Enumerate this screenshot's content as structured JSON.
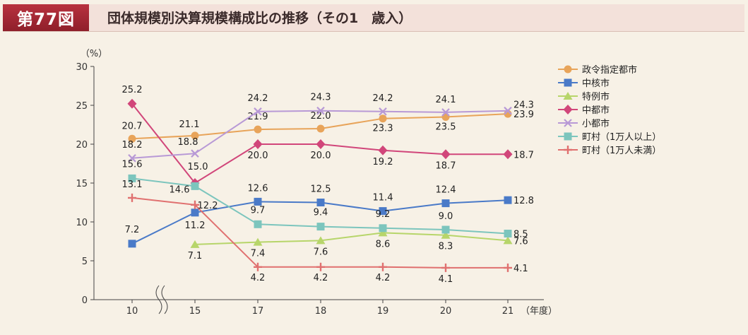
{
  "header": {
    "figure_no": "第77図",
    "title": "団体規模別決算規模構成比の推移（その1　歳入）"
  },
  "chart_data": {
    "type": "line",
    "title": "団体規模別決算規模構成比の推移（その1　歳入）",
    "ylabel": "（%）",
    "xlabel": "（年度）",
    "ylim": [
      0,
      30
    ],
    "yticks": [
      0,
      5,
      10,
      15,
      20,
      25,
      30
    ],
    "categories": [
      "10",
      "15",
      "17",
      "18",
      "19",
      "20",
      "21"
    ],
    "axis_break_between": [
      "10",
      "15"
    ],
    "legend_position": "top-right",
    "series": [
      {
        "name": "政令指定都市",
        "color": "#e8a45a",
        "marker": "circle",
        "values": [
          20.7,
          21.1,
          21.9,
          22.0,
          23.3,
          23.5,
          23.9
        ]
      },
      {
        "name": "中核市",
        "color": "#4a7ac8",
        "marker": "square",
        "values": [
          7.2,
          11.2,
          12.6,
          12.5,
          11.4,
          12.4,
          12.8
        ]
      },
      {
        "name": "特例市",
        "color": "#b7d56a",
        "marker": "triangle",
        "values": [
          null,
          7.1,
          7.4,
          7.6,
          8.6,
          8.3,
          7.6
        ]
      },
      {
        "name": "中都市",
        "color": "#d1467a",
        "marker": "diamond",
        "values": [
          25.2,
          15.0,
          20.0,
          20.0,
          19.2,
          18.7,
          18.7
        ]
      },
      {
        "name": "小都市",
        "color": "#b899d6",
        "marker": "x",
        "values": [
          18.2,
          18.8,
          24.2,
          24.3,
          24.2,
          24.1,
          24.3
        ]
      },
      {
        "name": "町村（1万人以上）",
        "color": "#7cc5bd",
        "marker": "square",
        "values": [
          15.6,
          14.6,
          9.7,
          9.4,
          9.2,
          9.0,
          8.5
        ]
      },
      {
        "name": "町村（1万人未満）",
        "color": "#e0706f",
        "marker": "plus",
        "values": [
          13.1,
          12.2,
          4.2,
          4.2,
          4.2,
          4.1,
          4.1
        ]
      }
    ]
  }
}
